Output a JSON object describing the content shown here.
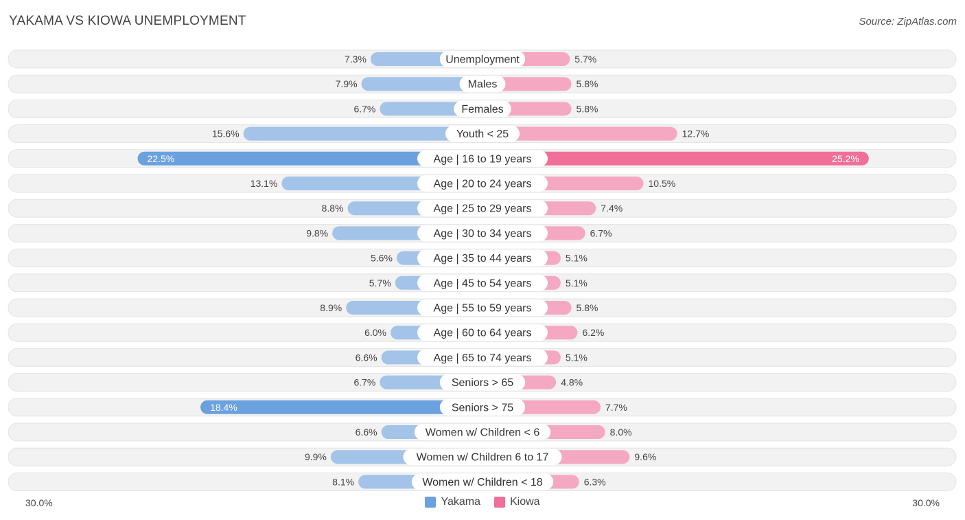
{
  "title": "YAKAMA VS KIOWA UNEMPLOYMENT",
  "source": "Source: ZipAtlas.com",
  "colors": {
    "yakama": "#a3c3e8",
    "yakama_strong": "#6aa1de",
    "kiowa": "#f5a8c1",
    "kiowa_strong": "#f06f98"
  },
  "chart_data": {
    "type": "bar",
    "orientation": "horizontal-diverging",
    "title": "YAKAMA VS KIOWA UNEMPLOYMENT",
    "axis_min_label": "30.0%",
    "axis_max_label": "30.0%",
    "xlim": [
      -30,
      30
    ],
    "categories": [
      "Unemployment",
      "Males",
      "Females",
      "Youth < 25",
      "Age | 16 to 19 years",
      "Age | 20 to 24 years",
      "Age | 25 to 29 years",
      "Age | 30 to 34 years",
      "Age | 35 to 44 years",
      "Age | 45 to 54 years",
      "Age | 55 to 59 years",
      "Age | 60 to 64 years",
      "Age | 65 to 74 years",
      "Seniors > 65",
      "Seniors > 75",
      "Women w/ Children < 6",
      "Women w/ Children 6 to 17",
      "Women w/ Children < 18"
    ],
    "series": [
      {
        "name": "Yakama",
        "values": [
          7.3,
          7.9,
          6.7,
          15.6,
          22.5,
          13.1,
          8.8,
          9.8,
          5.6,
          5.7,
          8.9,
          6.0,
          6.6,
          6.7,
          18.4,
          6.6,
          9.9,
          8.1
        ],
        "labels": [
          "7.3%",
          "7.9%",
          "6.7%",
          "15.6%",
          "22.5%",
          "13.1%",
          "8.8%",
          "9.8%",
          "5.6%",
          "5.7%",
          "8.9%",
          "6.0%",
          "6.6%",
          "6.7%",
          "18.4%",
          "6.6%",
          "9.9%",
          "8.1%"
        ]
      },
      {
        "name": "Kiowa",
        "values": [
          5.7,
          5.8,
          5.8,
          12.7,
          25.2,
          10.5,
          7.4,
          6.7,
          5.1,
          5.1,
          5.8,
          6.2,
          5.1,
          4.8,
          7.7,
          8.0,
          9.6,
          6.3
        ],
        "labels": [
          "5.7%",
          "5.8%",
          "5.8%",
          "12.7%",
          "25.2%",
          "10.5%",
          "7.4%",
          "6.7%",
          "5.1%",
          "5.1%",
          "5.8%",
          "6.2%",
          "5.1%",
          "4.8%",
          "7.7%",
          "8.0%",
          "9.6%",
          "6.3%"
        ]
      }
    ],
    "highlight_threshold": 18
  }
}
